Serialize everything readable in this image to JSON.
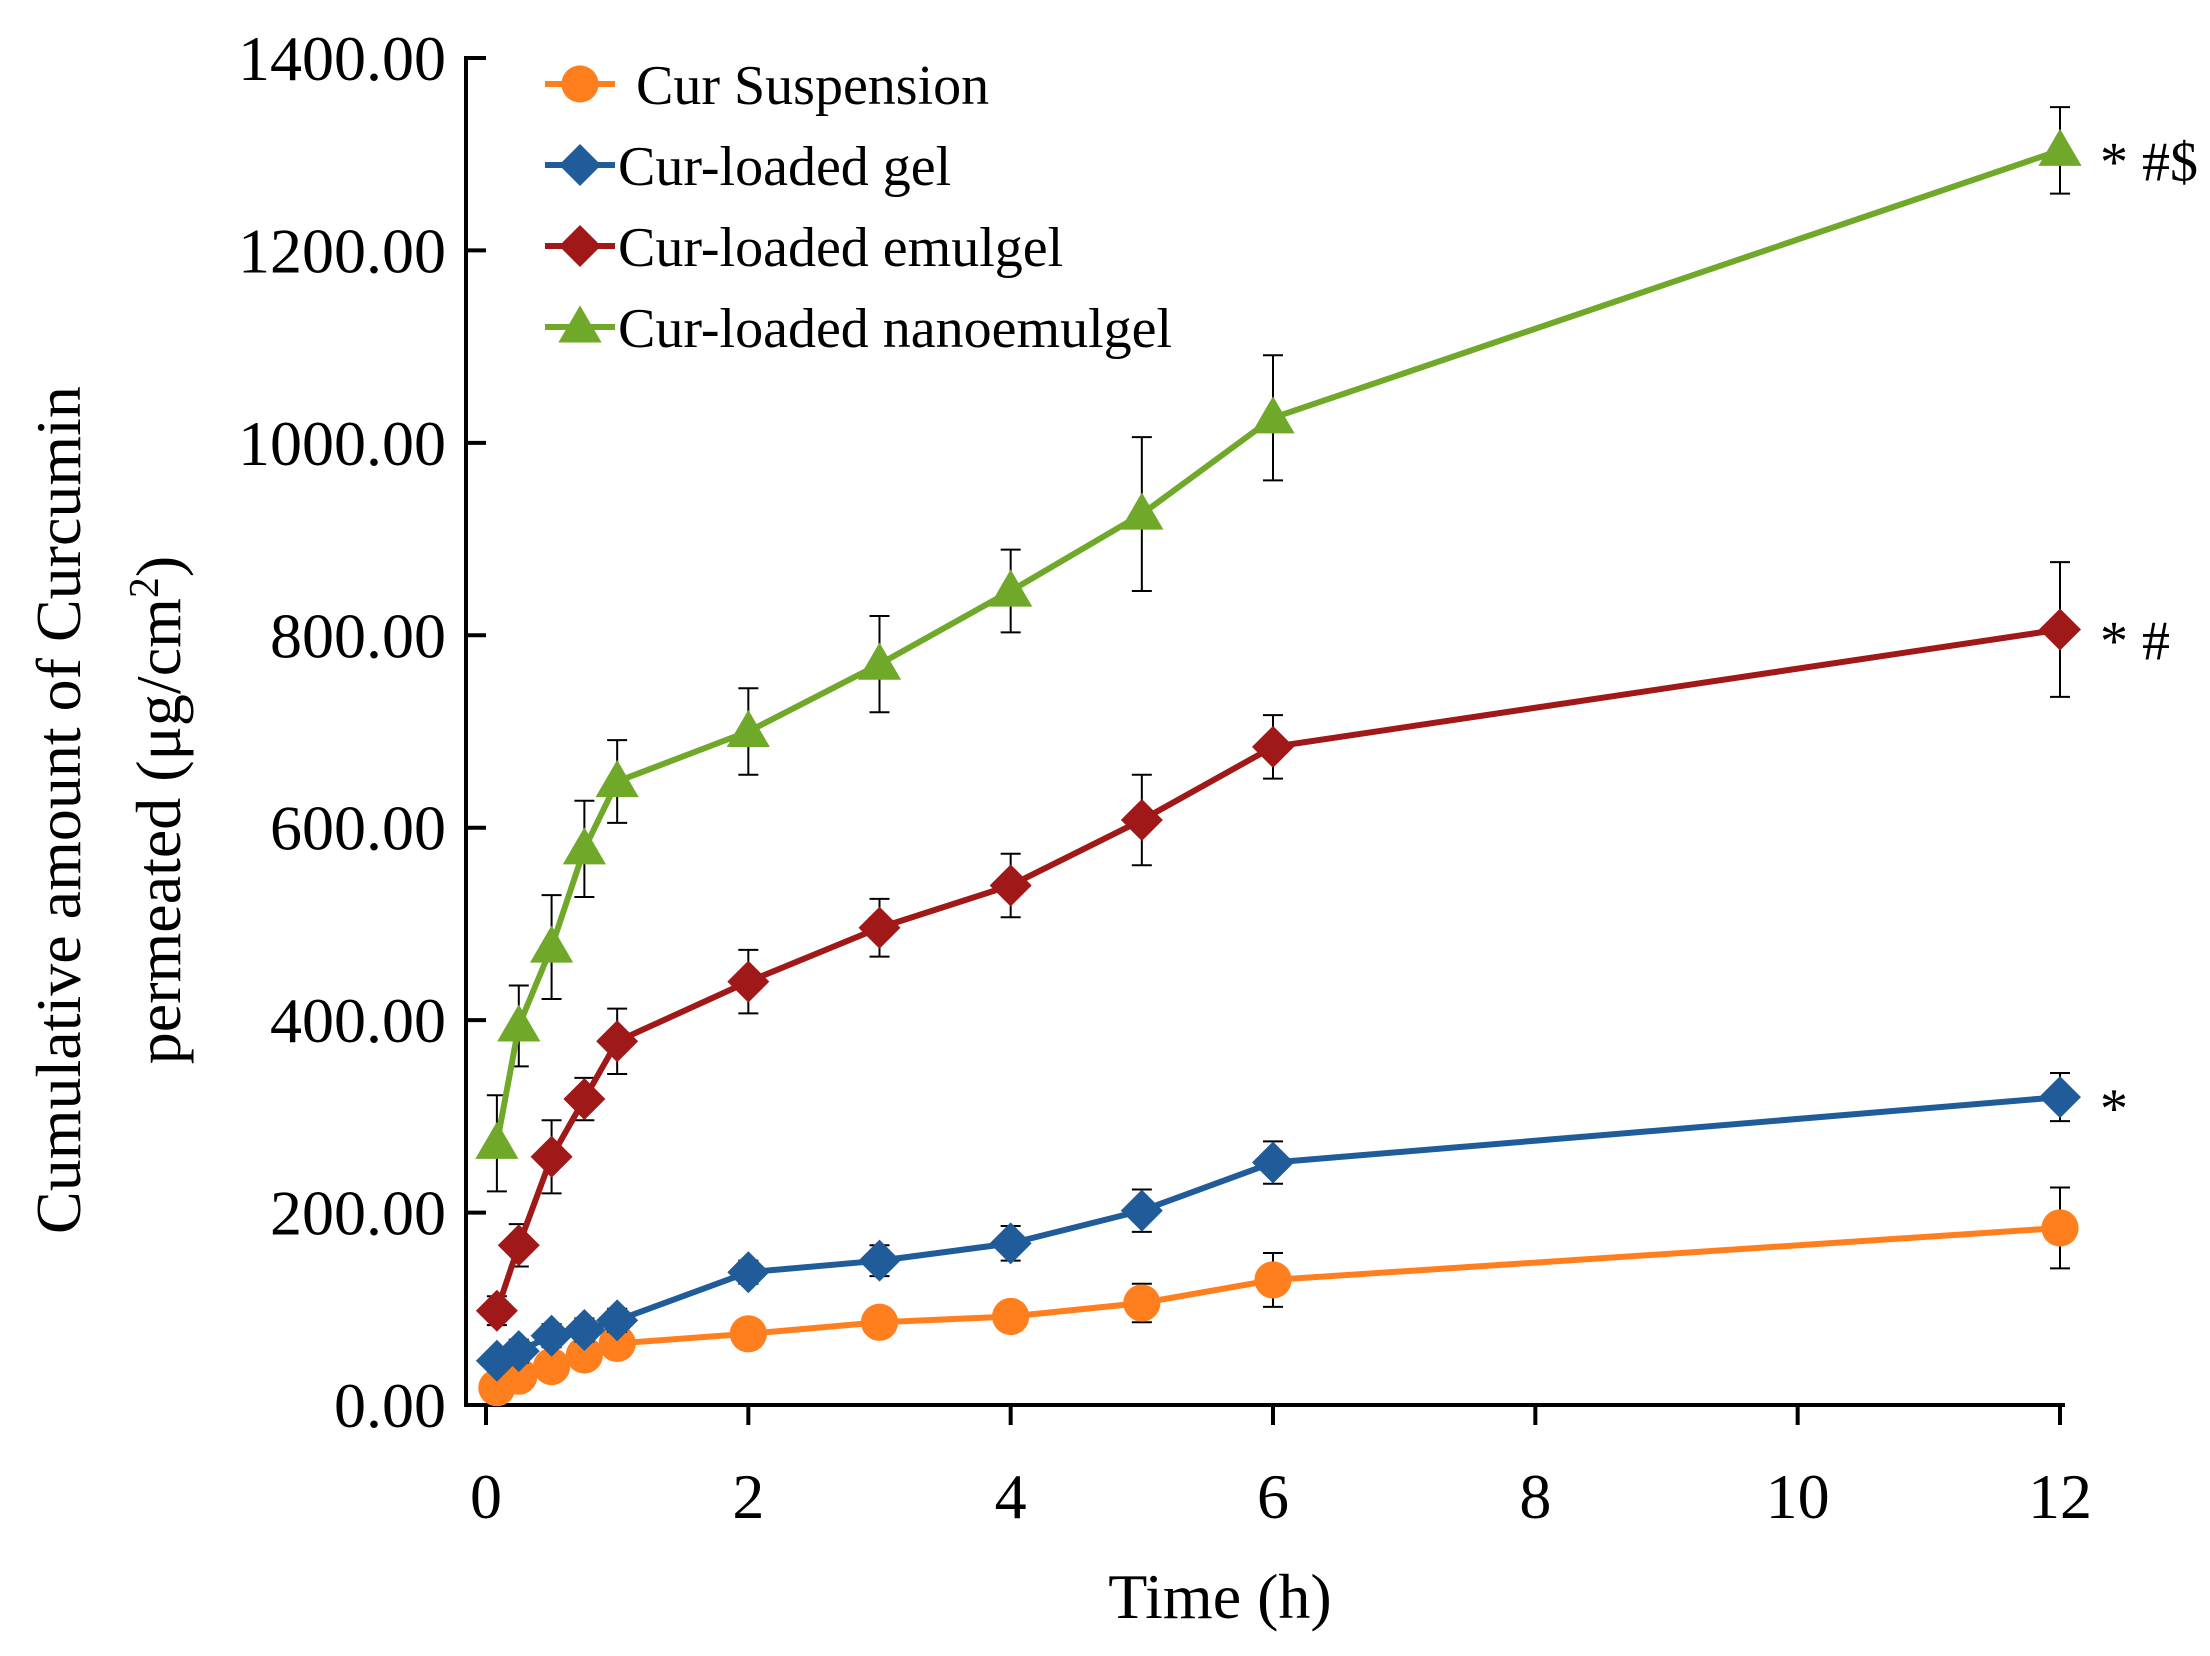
{
  "chart_data": {
    "type": "line",
    "title": "",
    "xlabel": "Time (h)",
    "ylabel": {
      "line1": "Cumulative  amount  of Curcumin",
      "line2_pre": "permeated (μg/cm",
      "line2_sup": "2",
      "line2_post": ")"
    },
    "xlim": [
      0,
      12
    ],
    "ylim": [
      0,
      1400
    ],
    "x_ticks": [
      {
        "value": 0,
        "label": "0"
      },
      {
        "value": 2,
        "label": "2"
      },
      {
        "value": 4,
        "label": "4"
      },
      {
        "value": 6,
        "label": "6"
      },
      {
        "value": 8,
        "label": "8"
      },
      {
        "value": 10,
        "label": "10"
      },
      {
        "value": 12,
        "label": "12"
      }
    ],
    "y_ticks": [
      {
        "value": 0,
        "label": "0.00"
      },
      {
        "value": 200,
        "label": "200.00"
      },
      {
        "value": 400,
        "label": "400.00"
      },
      {
        "value": 600,
        "label": "600.00"
      },
      {
        "value": 800,
        "label": "800.00"
      },
      {
        "value": 1000,
        "label": "1000.00"
      },
      {
        "value": 1200,
        "label": "1200.00"
      },
      {
        "value": 1400,
        "label": "1400.00"
      }
    ],
    "grid": false,
    "legend_position": "top-left",
    "x": [
      0.083,
      0.25,
      0.5,
      0.75,
      1,
      2,
      3,
      4,
      5,
      6,
      12
    ],
    "series": [
      {
        "name": "Cur Suspension",
        "color": "#FF7F1E",
        "marker": "circle",
        "values": [
          18,
          30,
          40,
          52,
          64,
          74,
          86,
          92,
          106,
          130,
          184
        ],
        "errors": [
          10,
          12,
          15,
          15,
          15,
          15,
          15,
          15,
          20,
          28,
          42
        ],
        "annotation": ""
      },
      {
        "name": "Cur-loaded gel",
        "color": "#1F5C99",
        "marker": "diamond",
        "values": [
          46,
          56,
          72,
          78,
          88,
          138,
          150,
          168,
          202,
          252,
          320
        ],
        "errors": [
          10,
          12,
          12,
          12,
          12,
          12,
          16,
          18,
          22,
          22,
          25
        ],
        "annotation": "*"
      },
      {
        "name": "Cur-loaded emulgel",
        "color": "#A01818",
        "marker": "diamond",
        "values": [
          98,
          166,
          258,
          318,
          378,
          440,
          496,
          540,
          608,
          684,
          806
        ],
        "errors": [
          15,
          22,
          38,
          22,
          34,
          33,
          30,
          33,
          47,
          33,
          70
        ],
        "annotation": "* #"
      },
      {
        "name": "Cur-loaded nanoemulgel",
        "color": "#70A82A",
        "marker": "triangle",
        "values": [
          272,
          394,
          476,
          578,
          648,
          700,
          770,
          846,
          926,
          1026,
          1304
        ],
        "errors": [
          50,
          42,
          54,
          50,
          43,
          45,
          50,
          43,
          80,
          65,
          45
        ],
        "annotation": "* #$"
      }
    ]
  }
}
